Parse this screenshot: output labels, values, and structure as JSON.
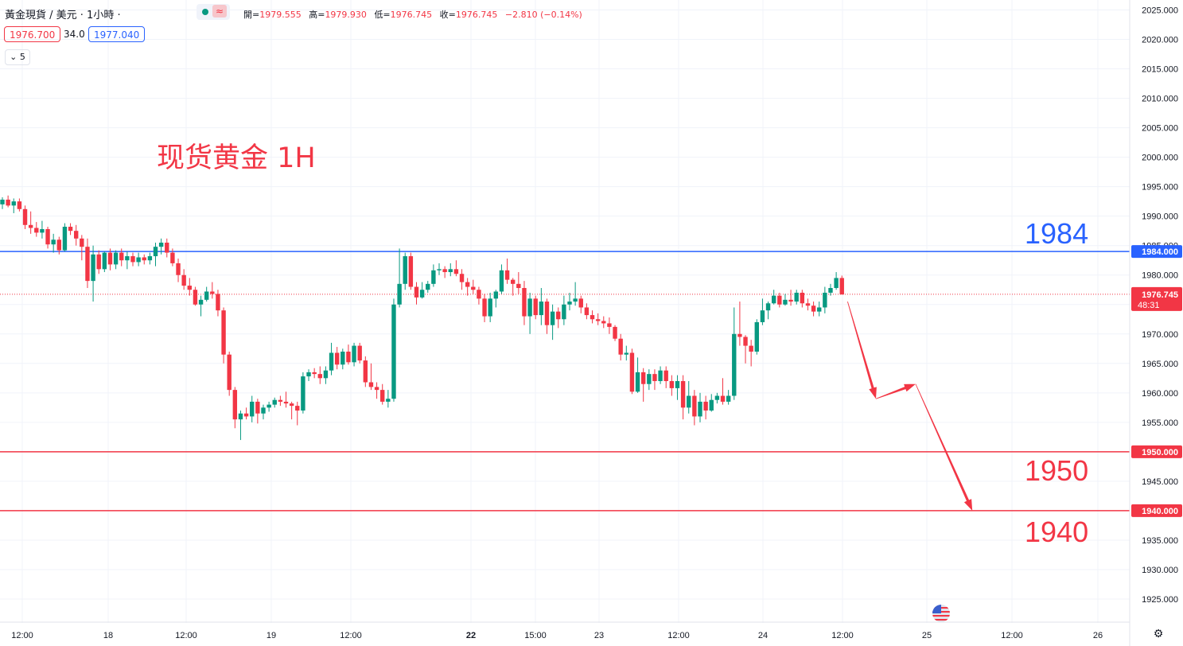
{
  "header": {
    "symbol_title": "黃金現貨 / 美元 · 1小時 ·",
    "ohlc": {
      "open_label": "開=",
      "open": "1979.555",
      "high_label": "高=",
      "high": "1979.930",
      "low_label": "低=",
      "low": "1976.745",
      "close_label": "收=",
      "close": "1976.745",
      "change": "−2.810 (−0.14%)"
    },
    "indicator_symbol": "≈",
    "bid": "1976.700",
    "spread": "34.0",
    "ask": "1977.040",
    "collapse_count": "5"
  },
  "annotations": {
    "title": "现货黄金 1H",
    "level_1984": "1984",
    "level_1950": "1950",
    "level_1940": "1940"
  },
  "colors": {
    "up": "#089981",
    "down": "#f23645",
    "resistance": "#2962ff",
    "support": "#f23645",
    "grid": "#f0f3fa"
  },
  "footer_icons": [
    "us-flag-icon",
    "gear-icon"
  ],
  "chart_data": {
    "type": "candlestick",
    "y_axis": {
      "ticks": [
        "1925.000",
        "1930.000",
        "1935.000",
        "1940.000",
        "1945.000",
        "1950.000",
        "1955.000",
        "1960.000",
        "1965.000",
        "1970.000",
        "1975.000",
        "1980.000",
        "1985.000",
        "1990.000",
        "1995.000",
        "2000.000",
        "2005.000",
        "2010.000",
        "2015.000",
        "2020.000",
        "2025.000"
      ],
      "range": [
        1922,
        2026
      ]
    },
    "x_axis": {
      "ticks": [
        "12:00",
        "18",
        "12:00",
        "19",
        "12:00",
        "22",
        "15:00",
        "23",
        "12:00",
        "24",
        "12:00",
        "25",
        "12:00",
        "26"
      ],
      "bold": [
        "22"
      ]
    },
    "current_price": {
      "value": 1976.745,
      "label": "1976.745",
      "countdown": "48:31"
    },
    "levels": [
      {
        "value": 1984,
        "label": "1984.000",
        "color": "#2962ff"
      },
      {
        "value": 1950,
        "label": "1950.000",
        "color": "#f23645"
      },
      {
        "value": 1940,
        "label": "1940.000",
        "color": "#f23645"
      }
    ],
    "forecast_path": [
      {
        "bar": 149,
        "price": 1975.5
      },
      {
        "bar": 154,
        "price": 1959
      },
      {
        "bar": 161,
        "price": 1961.5
      },
      {
        "bar": 171,
        "price": 1940
      }
    ],
    "candles": [
      [
        1992.0,
        1993.2,
        1991.2,
        1992.8
      ],
      [
        1992.8,
        1993.5,
        1991.5,
        1991.8
      ],
      [
        1991.8,
        1993.0,
        1990.5,
        1992.5
      ],
      [
        1992.5,
        1993.0,
        1990.8,
        1991.2
      ],
      [
        1991.2,
        1991.8,
        1987.8,
        1988.5
      ],
      [
        1988.5,
        1990.8,
        1987.0,
        1988.0
      ],
      [
        1988.0,
        1989.0,
        1986.5,
        1987.2
      ],
      [
        1987.2,
        1989.2,
        1986.2,
        1987.8
      ],
      [
        1987.8,
        1988.2,
        1984.5,
        1985.2
      ],
      [
        1985.2,
        1987.0,
        1983.8,
        1986.0
      ],
      [
        1986.0,
        1986.5,
        1983.5,
        1984.2
      ],
      [
        1984.2,
        1988.8,
        1984.0,
        1988.2
      ],
      [
        1988.2,
        1988.8,
        1986.8,
        1987.5
      ],
      [
        1987.5,
        1988.5,
        1985.0,
        1986.2
      ],
      [
        1986.2,
        1986.8,
        1982.5,
        1984.8
      ],
      [
        1984.8,
        1986.2,
        1977.8,
        1979.0
      ],
      [
        1979.0,
        1985.0,
        1975.5,
        1983.5
      ],
      [
        1983.5,
        1984.2,
        1980.2,
        1981.0
      ],
      [
        1981.0,
        1984.0,
        1980.5,
        1983.8
      ],
      [
        1983.8,
        1984.5,
        1980.8,
        1981.8
      ],
      [
        1981.8,
        1984.2,
        1981.0,
        1983.8
      ],
      [
        1983.8,
        1984.5,
        1981.5,
        1982.5
      ],
      [
        1982.5,
        1984.0,
        1981.0,
        1983.2
      ],
      [
        1983.2,
        1983.8,
        1981.5,
        1982.2
      ],
      [
        1982.2,
        1983.8,
        1981.5,
        1983.0
      ],
      [
        1983.0,
        1983.5,
        1981.8,
        1982.5
      ],
      [
        1982.5,
        1983.8,
        1981.8,
        1983.2
      ],
      [
        1983.2,
        1985.5,
        1981.5,
        1984.8
      ],
      [
        1984.8,
        1986.2,
        1983.5,
        1985.5
      ],
      [
        1985.5,
        1986.2,
        1983.0,
        1983.8
      ],
      [
        1983.8,
        1984.5,
        1981.5,
        1982.0
      ],
      [
        1982.0,
        1982.8,
        1978.8,
        1980.0
      ],
      [
        1980.0,
        1981.0,
        1977.5,
        1978.2
      ],
      [
        1978.2,
        1979.5,
        1976.5,
        1977.5
      ],
      [
        1977.5,
        1978.0,
        1974.8,
        1975.0
      ],
      [
        1975.0,
        1976.5,
        1973.0,
        1975.8
      ],
      [
        1975.8,
        1978.0,
        1975.5,
        1977.2
      ],
      [
        1977.2,
        1978.8,
        1976.0,
        1976.8
      ],
      [
        1976.8,
        1977.5,
        1973.0,
        1974.0
      ],
      [
        1974.0,
        1974.5,
        1965.0,
        1966.5
      ],
      [
        1966.5,
        1967.0,
        1959.5,
        1960.5
      ],
      [
        1960.5,
        1961.0,
        1954.0,
        1955.5
      ],
      [
        1955.5,
        1957.0,
        1952.0,
        1956.5
      ],
      [
        1956.5,
        1957.5,
        1955.5,
        1956.0
      ],
      [
        1956.0,
        1959.5,
        1955.0,
        1958.5
      ],
      [
        1958.5,
        1959.0,
        1954.8,
        1956.5
      ],
      [
        1956.5,
        1958.0,
        1955.5,
        1957.5
      ],
      [
        1957.5,
        1958.5,
        1956.8,
        1958.0
      ],
      [
        1958.0,
        1959.2,
        1957.5,
        1958.8
      ],
      [
        1958.8,
        1959.5,
        1957.8,
        1958.5
      ],
      [
        1958.5,
        1960.2,
        1957.5,
        1958.2
      ],
      [
        1958.2,
        1958.5,
        1955.5,
        1957.8
      ],
      [
        1957.8,
        1958.5,
        1954.5,
        1957.0
      ],
      [
        1957.0,
        1963.5,
        1956.5,
        1962.8
      ],
      [
        1962.8,
        1964.0,
        1962.0,
        1963.5
      ],
      [
        1963.5,
        1964.2,
        1962.5,
        1963.2
      ],
      [
        1963.2,
        1964.5,
        1961.5,
        1962.5
      ],
      [
        1962.5,
        1964.5,
        1961.5,
        1963.8
      ],
      [
        1963.8,
        1968.5,
        1963.0,
        1966.8
      ],
      [
        1966.8,
        1967.8,
        1964.0,
        1964.8
      ],
      [
        1964.8,
        1967.5,
        1964.0,
        1967.0
      ],
      [
        1967.0,
        1968.2,
        1964.8,
        1965.2
      ],
      [
        1965.2,
        1968.5,
        1964.5,
        1968.0
      ],
      [
        1968.0,
        1968.5,
        1965.0,
        1965.5
      ],
      [
        1965.5,
        1966.2,
        1961.0,
        1961.8
      ],
      [
        1961.8,
        1965.0,
        1960.5,
        1961.0
      ],
      [
        1961.0,
        1961.8,
        1959.0,
        1960.5
      ],
      [
        1960.5,
        1961.5,
        1958.0,
        1958.5
      ],
      [
        1958.5,
        1960.5,
        1957.5,
        1959.0
      ],
      [
        1959.0,
        1976.0,
        1958.5,
        1975.0
      ],
      [
        1975.0,
        1984.5,
        1974.5,
        1978.5
      ],
      [
        1978.5,
        1983.8,
        1977.5,
        1983.2
      ],
      [
        1983.2,
        1983.8,
        1977.5,
        1978.0
      ],
      [
        1978.0,
        1978.8,
        1975.0,
        1976.2
      ],
      [
        1976.2,
        1978.8,
        1976.0,
        1977.5
      ],
      [
        1977.5,
        1979.0,
        1977.0,
        1978.5
      ],
      [
        1978.5,
        1981.8,
        1978.0,
        1980.8
      ],
      [
        1980.8,
        1982.0,
        1980.0,
        1981.0
      ],
      [
        1981.0,
        1981.5,
        1979.5,
        1980.5
      ],
      [
        1980.5,
        1982.0,
        1979.8,
        1981.0
      ],
      [
        1981.0,
        1982.5,
        1979.8,
        1980.2
      ],
      [
        1980.2,
        1981.0,
        1977.5,
        1978.8
      ],
      [
        1978.8,
        1979.5,
        1976.5,
        1978.0
      ],
      [
        1978.0,
        1979.2,
        1976.8,
        1977.5
      ],
      [
        1977.5,
        1978.0,
        1975.0,
        1976.0
      ],
      [
        1976.0,
        1976.8,
        1972.0,
        1973.0
      ],
      [
        1973.0,
        1977.0,
        1972.0,
        1976.0
      ],
      [
        1976.0,
        1977.5,
        1974.5,
        1977.2
      ],
      [
        1977.2,
        1981.8,
        1976.8,
        1980.8
      ],
      [
        1980.8,
        1982.8,
        1978.5,
        1979.2
      ],
      [
        1979.2,
        1979.5,
        1976.5,
        1978.5
      ],
      [
        1978.5,
        1980.5,
        1976.8,
        1977.8
      ],
      [
        1977.8,
        1979.0,
        1971.5,
        1973.0
      ],
      [
        1973.0,
        1977.0,
        1970.0,
        1976.0
      ],
      [
        1976.0,
        1976.5,
        1972.5,
        1973.2
      ],
      [
        1973.2,
        1977.8,
        1971.5,
        1975.5
      ],
      [
        1975.5,
        1976.0,
        1970.0,
        1971.5
      ],
      [
        1971.5,
        1975.0,
        1969.0,
        1973.8
      ],
      [
        1973.8,
        1974.5,
        1971.0,
        1972.5
      ],
      [
        1972.5,
        1976.5,
        1971.5,
        1975.0
      ],
      [
        1975.0,
        1977.0,
        1974.0,
        1975.5
      ],
      [
        1975.5,
        1978.8,
        1974.8,
        1976.0
      ],
      [
        1976.0,
        1976.5,
        1973.5,
        1974.5
      ],
      [
        1974.5,
        1975.2,
        1972.5,
        1973.2
      ],
      [
        1973.2,
        1974.0,
        1971.8,
        1972.5
      ],
      [
        1972.5,
        1973.5,
        1971.5,
        1972.2
      ],
      [
        1972.2,
        1973.0,
        1971.0,
        1971.8
      ],
      [
        1971.8,
        1972.8,
        1970.0,
        1971.2
      ],
      [
        1971.2,
        1971.5,
        1968.8,
        1969.2
      ],
      [
        1969.2,
        1970.0,
        1965.5,
        1966.5
      ],
      [
        1966.5,
        1968.0,
        1965.5,
        1966.8
      ],
      [
        1966.8,
        1967.5,
        1959.8,
        1960.2
      ],
      [
        1960.2,
        1966.0,
        1960.0,
        1963.5
      ],
      [
        1963.5,
        1964.2,
        1958.5,
        1961.5
      ],
      [
        1961.5,
        1964.0,
        1960.5,
        1963.2
      ],
      [
        1963.2,
        1964.0,
        1960.5,
        1962.0
      ],
      [
        1962.0,
        1964.5,
        1961.5,
        1963.8
      ],
      [
        1963.8,
        1964.5,
        1960.8,
        1962.0
      ],
      [
        1962.0,
        1963.0,
        1959.5,
        1960.8
      ],
      [
        1960.8,
        1963.0,
        1958.8,
        1962.0
      ],
      [
        1962.0,
        1963.0,
        1955.5,
        1957.5
      ],
      [
        1957.5,
        1962.0,
        1956.5,
        1959.5
      ],
      [
        1959.5,
        1960.5,
        1954.5,
        1956.0
      ],
      [
        1956.0,
        1960.0,
        1955.0,
        1958.5
      ],
      [
        1958.5,
        1959.5,
        1955.5,
        1957.0
      ],
      [
        1957.0,
        1959.8,
        1956.8,
        1958.8
      ],
      [
        1958.8,
        1960.0,
        1958.2,
        1959.5
      ],
      [
        1959.5,
        1962.5,
        1958.0,
        1958.5
      ],
      [
        1958.5,
        1960.5,
        1958.0,
        1959.5
      ],
      [
        1959.5,
        1974.5,
        1958.8,
        1970.0
      ],
      [
        1970.0,
        1975.5,
        1968.0,
        1969.5
      ],
      [
        1969.5,
        1969.8,
        1965.0,
        1968.0
      ],
      [
        1968.0,
        1969.0,
        1964.5,
        1967.0
      ],
      [
        1967.0,
        1972.5,
        1966.5,
        1972.0
      ],
      [
        1972.0,
        1976.0,
        1971.5,
        1974.0
      ],
      [
        1974.0,
        1975.5,
        1972.5,
        1975.2
      ],
      [
        1975.2,
        1977.5,
        1975.0,
        1976.5
      ],
      [
        1976.5,
        1977.0,
        1974.5,
        1975.0
      ],
      [
        1975.0,
        1976.8,
        1974.8,
        1975.8
      ],
      [
        1975.8,
        1977.5,
        1974.8,
        1975.5
      ],
      [
        1975.5,
        1977.5,
        1975.0,
        1977.0
      ],
      [
        1977.0,
        1977.5,
        1974.5,
        1975.2
      ],
      [
        1975.2,
        1976.0,
        1974.0,
        1974.8
      ],
      [
        1974.8,
        1975.5,
        1973.0,
        1973.8
      ],
      [
        1973.8,
        1975.5,
        1973.0,
        1974.5
      ],
      [
        1974.5,
        1978.0,
        1973.5,
        1977.0
      ],
      [
        1977.0,
        1978.5,
        1976.5,
        1977.8
      ],
      [
        1977.8,
        1980.5,
        1977.5,
        1979.5
      ],
      [
        1979.5,
        1979.9,
        1976.7,
        1976.7
      ]
    ]
  }
}
